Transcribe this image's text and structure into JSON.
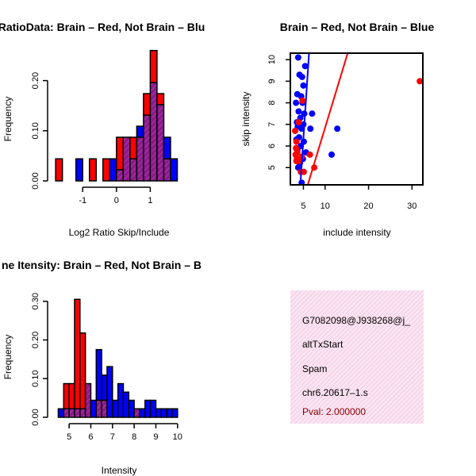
{
  "colors": {
    "brain": "#ff0000",
    "not_brain": "#0000ff",
    "overlap": "#9a1a9a",
    "legend_bg": "#f9dcee"
  },
  "chart_data": [
    {
      "type": "bar",
      "subtype": "overlaid-histogram",
      "title": "RatioData: Brain – Red, Not Brain – Blu",
      "xlabel": "Log2 Ratio Skip/Include",
      "ylabel": "Frequency",
      "xticks": [
        "-1",
        "0",
        "1"
      ],
      "yticks": [
        "0.00",
        "0.10",
        "0.20"
      ],
      "xlim": [
        -1.85,
        2.0
      ],
      "ylim": [
        0,
        0.25
      ],
      "bin_edges": [
        -1.8,
        -1.6,
        -1.4,
        -1.2,
        -1.0,
        -0.8,
        -0.6,
        -0.4,
        -0.2,
        0.0,
        0.2,
        0.4,
        0.6,
        0.8,
        1.0,
        1.2,
        1.4,
        1.6,
        1.8
      ],
      "series": [
        {
          "name": "Brain",
          "values": [
            0.044,
            0,
            0,
            0,
            0,
            0.044,
            0,
            0.044,
            0,
            0.087,
            0.087,
            0.087,
            0.087,
            0.174,
            0.26,
            0.174,
            0.044,
            0
          ]
        },
        {
          "name": "Not Brain",
          "values": [
            0,
            0,
            0,
            0.044,
            0,
            0,
            0,
            0,
            0.044,
            0.022,
            0.087,
            0.044,
            0.109,
            0.131,
            0.196,
            0.152,
            0.087,
            0.044
          ]
        }
      ]
    },
    {
      "type": "scatter",
      "title": "Brain – Red, Not Brain – Blue",
      "xlabel": "include intensity",
      "ylabel": "skip intensity",
      "xticks": [
        "5",
        "10",
        "20",
        "30"
      ],
      "yticks": [
        "5",
        "6",
        "7",
        "8",
        "9",
        "10"
      ],
      "xlim": [
        2.0,
        32.5
      ],
      "ylim": [
        4.2,
        10.3
      ],
      "series": [
        {
          "name": "Not Brain",
          "points": [
            [
              3.8,
              10.1
            ],
            [
              5.4,
              9.7
            ],
            [
              4.1,
              9.3
            ],
            [
              4.7,
              9.2
            ],
            [
              5.0,
              8.8
            ],
            [
              3.6,
              8.4
            ],
            [
              4.5,
              8.3
            ],
            [
              3.3,
              8.0
            ],
            [
              4.8,
              8.0
            ],
            [
              3.9,
              7.6
            ],
            [
              5.2,
              7.5
            ],
            [
              7.0,
              7.5
            ],
            [
              4.3,
              7.3
            ],
            [
              3.5,
              7.1
            ],
            [
              5.0,
              7.0
            ],
            [
              3.7,
              6.9
            ],
            [
              4.6,
              6.8
            ],
            [
              6.6,
              6.8
            ],
            [
              12.8,
              6.8
            ],
            [
              4.0,
              6.4
            ],
            [
              3.4,
              6.3
            ],
            [
              5.1,
              6.2
            ],
            [
              4.4,
              6.0
            ],
            [
              3.6,
              5.8
            ],
            [
              5.6,
              5.7
            ],
            [
              11.5,
              5.6
            ],
            [
              4.9,
              5.4
            ],
            [
              4.2,
              5.2
            ],
            [
              3.8,
              5.0
            ],
            [
              4.6,
              4.3
            ]
          ]
        },
        {
          "name": "Brain",
          "points": [
            [
              31.8,
              9.0
            ],
            [
              4.8,
              8.1
            ],
            [
              3.9,
              7.1
            ],
            [
              3.1,
              6.7
            ],
            [
              3.4,
              6.2
            ],
            [
              3.3,
              5.9
            ],
            [
              3.6,
              5.7
            ],
            [
              3.2,
              5.6
            ],
            [
              3.5,
              5.4
            ],
            [
              4.0,
              5.3
            ],
            [
              6.5,
              5.6
            ],
            [
              4.6,
              5.5
            ],
            [
              3.4,
              5.3
            ],
            [
              7.5,
              5.0
            ],
            [
              4.4,
              4.8
            ],
            [
              5.1,
              4.8
            ]
          ]
        }
      ],
      "fit_lines": [
        {
          "name": "Not Brain",
          "from": [
            4.3,
            4.2
          ],
          "to": [
            6.3,
            10.3
          ]
        },
        {
          "name": "Brain",
          "from": [
            6.0,
            4.2
          ],
          "to": [
            15.2,
            10.3
          ]
        }
      ]
    },
    {
      "type": "bar",
      "subtype": "overlaid-histogram",
      "title": "ne Itensity: Brain – Red, Not Brain – B",
      "xlabel": "Intensity",
      "ylabel": "Frequency",
      "xticks": [
        "5",
        "6",
        "7",
        "8",
        "9",
        "10"
      ],
      "yticks": [
        "0.00",
        "0.10",
        "0.20",
        "0.30"
      ],
      "xlim": [
        4.3,
        10.3
      ],
      "ylim": [
        0,
        0.32
      ],
      "bin_edges": [
        4.5,
        4.75,
        5.0,
        5.25,
        5.5,
        5.75,
        6.0,
        6.25,
        6.5,
        6.75,
        7.0,
        7.25,
        7.5,
        7.75,
        8.0,
        8.25,
        8.5,
        8.75,
        9.0,
        9.25,
        9.5,
        9.75,
        10.0
      ],
      "series": [
        {
          "name": "Brain",
          "values": [
            0,
            0.087,
            0.087,
            0.305,
            0.218,
            0.087,
            0,
            0.044,
            0.044,
            0,
            0,
            0,
            0,
            0,
            0.022,
            0,
            0,
            0,
            0,
            0,
            0,
            0
          ]
        },
        {
          "name": "Not Brain",
          "values": [
            0.022,
            0.022,
            0.022,
            0.022,
            0.022,
            0.087,
            0.044,
            0.175,
            0.109,
            0.131,
            0.044,
            0.087,
            0.065,
            0.044,
            0.022,
            0.022,
            0.044,
            0.044,
            0.022,
            0.022,
            0.022,
            0.022
          ]
        }
      ]
    }
  ],
  "info_panel": {
    "event_id": "G7082098@J938268@j_",
    "event_type": "altTxStart",
    "species": "Spam",
    "location": "chr6.20617–1.s",
    "pval": "Pval: 2.000000"
  }
}
